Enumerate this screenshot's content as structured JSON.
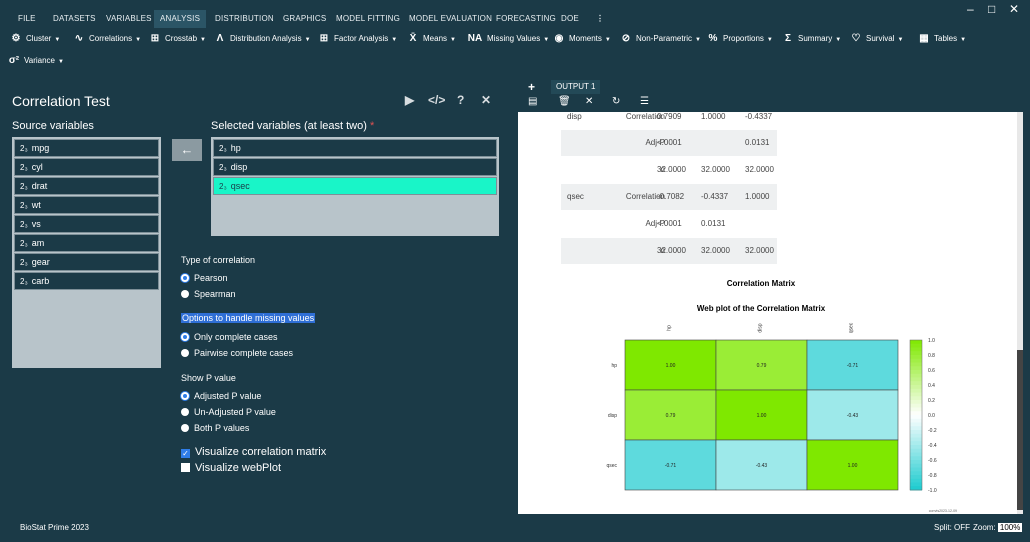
{
  "menu": {
    "items": [
      "FILE",
      "DATASETS",
      "VARIABLES",
      "ANALYSIS",
      "DISTRIBUTION",
      "GRAPHICS",
      "MODEL FITTING",
      "MODEL EVALUATION",
      "FORECASTING",
      "DOE"
    ],
    "active": "ANALYSIS",
    "more": "⋮"
  },
  "toolbar": {
    "items": [
      {
        "label": "Cluster",
        "icon": "cluster-icon"
      },
      {
        "label": "Correlations",
        "icon": "correlations-icon"
      },
      {
        "label": "Crosstab",
        "icon": "crosstab-icon"
      },
      {
        "label": "Distribution Analysis",
        "icon": "distribution-icon"
      },
      {
        "label": "Factor Analysis",
        "icon": "factor-icon"
      },
      {
        "label": "Means",
        "icon": "means-icon"
      },
      {
        "label": "Missing Values",
        "icon": "na-icon"
      },
      {
        "label": "Moments",
        "icon": "moments-icon"
      },
      {
        "label": "Non-Parametric",
        "icon": "nonparametric-icon"
      },
      {
        "label": "Proportions",
        "icon": "percent-icon"
      },
      {
        "label": "Summary",
        "icon": "sigma-icon"
      },
      {
        "label": "Survival",
        "icon": "heartbeat-icon"
      },
      {
        "label": "Tables",
        "icon": "table-icon"
      },
      {
        "label": "Variance",
        "icon": "variance-icon"
      }
    ]
  },
  "dialog": {
    "title": "Correlation Test",
    "source_label": "Source variables",
    "source_vars": [
      "mpg",
      "cyl",
      "drat",
      "wt",
      "vs",
      "am",
      "gear",
      "carb"
    ],
    "selected_label": "Selected variables (at least two)",
    "required_mark": "*",
    "selected_vars": [
      "hp",
      "disp",
      "qsec"
    ],
    "highlighted_var": "qsec",
    "var_type_glyph": "2₃",
    "type_label": "Type of correlation",
    "type_options": [
      "Pearson",
      "Spearman"
    ],
    "type_selected": "Pearson",
    "missing_label": "Options to handle missing values",
    "missing_options": [
      "Only complete cases",
      "Pairwise complete cases"
    ],
    "missing_selected": "Only complete cases",
    "pval_label": "Show P value",
    "pval_options": [
      "Adjusted P value",
      "Un-Adjusted P value",
      "Both P values"
    ],
    "pval_selected": "Adjusted P value",
    "checks": [
      {
        "label": "Visualize correlation matrix",
        "checked": true
      },
      {
        "label": "Visualize webPlot",
        "checked": false
      }
    ]
  },
  "output": {
    "tab_label": "OUTPUT 1",
    "add_label": "+",
    "rows": [
      {
        "var": "disp",
        "stat": "Correlation",
        "v1": "0.7909",
        "v2": "1.0000",
        "v3": "-0.4337",
        "shade": false
      },
      {
        "var": "",
        "stat": "Adj-P",
        "v1": "<.0001",
        "v2": "",
        "v3": "0.0131",
        "shade": true
      },
      {
        "var": "",
        "stat": "n",
        "v1": "32.0000",
        "v2": "32.0000",
        "v3": "32.0000",
        "shade": false
      },
      {
        "var": "qsec",
        "stat": "Correlation",
        "v1": "-0.7082",
        "v2": "-0.4337",
        "v3": "1.0000",
        "shade": true
      },
      {
        "var": "",
        "stat": "Adj-P",
        "v1": "<.0001",
        "v2": "0.0131",
        "v3": "",
        "shade": false
      },
      {
        "var": "",
        "stat": "n",
        "v1": "32.0000",
        "v2": "32.0000",
        "v3": "32.0000",
        "shade": true
      }
    ]
  },
  "chart_data": {
    "type": "heatmap",
    "title": "Correlation Matrix",
    "subtitle": "Web plot of the Correlation Matrix",
    "rows": [
      "hp",
      "disp",
      "qsec"
    ],
    "cols": [
      "hp",
      "disp",
      "qsec"
    ],
    "values": [
      [
        1.0,
        0.79,
        -0.71
      ],
      [
        0.79,
        1.0,
        -0.43
      ],
      [
        -0.71,
        -0.43,
        1.0
      ]
    ],
    "labels": [
      [
        "1.00",
        "0.79",
        "-0.71"
      ],
      [
        "0.79",
        "1.00",
        "-0.43"
      ],
      [
        "-0.71",
        "-0.43",
        "1.00"
      ]
    ],
    "scale_ticks": [
      "1.0",
      "0.8",
      "0.6",
      "0.4",
      "0.2",
      "0.0",
      "-0.2",
      "-0.4",
      "-0.6",
      "-0.8",
      "-1.0"
    ],
    "scale_range": [
      -1.0,
      1.0
    ],
    "colors": {
      "high": "#7fe800",
      "mid": "#ffffff",
      "low": "#1ccbcf"
    },
    "footnote": "corrvis2023-12-09"
  },
  "status": {
    "app": "BioStat Prime 2023",
    "split": "Split: OFF",
    "zoom_label": "Zoom:",
    "zoom_value": "100%"
  }
}
